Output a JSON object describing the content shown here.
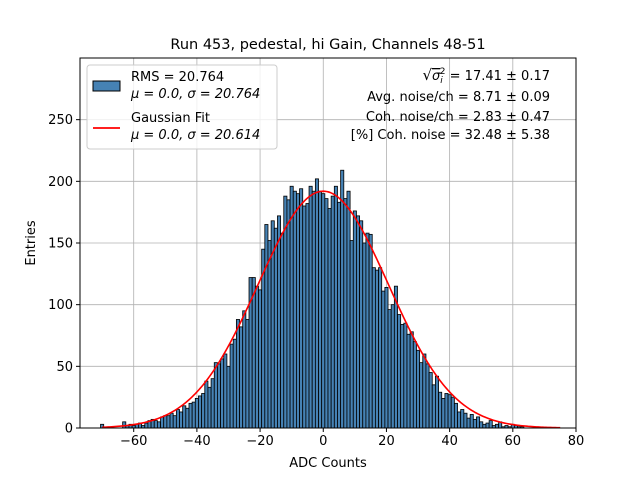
{
  "chart_data": {
    "type": "bar",
    "title": "Run 453, pedestal, hi Gain, Channels 48-51",
    "xlabel": "ADC Counts",
    "ylabel": "Entries",
    "xlim": [
      -77,
      80
    ],
    "ylim": [
      0,
      300
    ],
    "xticks": [
      -60,
      -40,
      -20,
      0,
      20,
      40,
      60,
      80
    ],
    "yticks": [
      0,
      50,
      100,
      150,
      200,
      250
    ],
    "xtick_labels": [
      "−60",
      "−40",
      "−20",
      "0",
      "20",
      "40",
      "60",
      "80"
    ],
    "ytick_labels": [
      "0",
      "50",
      "100",
      "150",
      "200",
      "250"
    ],
    "grid": true,
    "bin_width": 1,
    "bin_start": -70.5,
    "bar_color": "#4682b4",
    "bar_edge_color": "#000000",
    "histogram_values": [
      3,
      0,
      0,
      0,
      0,
      0,
      0,
      5,
      2,
      3,
      2,
      3,
      4,
      2,
      4,
      6,
      7,
      6,
      5,
      9,
      10,
      10,
      12,
      10,
      15,
      13,
      18,
      16,
      20,
      21,
      24,
      26,
      28,
      38,
      33,
      40,
      53,
      52,
      56,
      60,
      50,
      68,
      72,
      88,
      82,
      95,
      88,
      122,
      122,
      115,
      112,
      145,
      165,
      152,
      168,
      162,
      172,
      158,
      188,
      185,
      196,
      192,
      190,
      194,
      180,
      182,
      196,
      192,
      202,
      192,
      190,
      186,
      178,
      188,
      196,
      183,
      209,
      186,
      192,
      152,
      176,
      172,
      168,
      150,
      158,
      157,
      130,
      128,
      130,
      111,
      114,
      96,
      100,
      115,
      92,
      84,
      85,
      76,
      78,
      70,
      63,
      53,
      60,
      52,
      45,
      35,
      42,
      29,
      24,
      28,
      27,
      25,
      20,
      13,
      15,
      12,
      8,
      11,
      7,
      9,
      5,
      3,
      4,
      6,
      2,
      3,
      5,
      1,
      2,
      1,
      3,
      2,
      1,
      1
    ],
    "series": [
      {
        "name": "RMS = 20.764",
        "detail": "μ = 0.0, σ = 20.764",
        "kind": "histogram",
        "mean": 0.0,
        "sigma": 20.764
      },
      {
        "name": "Gaussian Fit",
        "detail": "μ = 0.0, σ = 20.614",
        "kind": "line",
        "mean": 0.0,
        "sigma": 20.614,
        "amplitude": 192,
        "x_range": [
          -70,
          75
        ],
        "color": "#ff0000"
      }
    ],
    "legend_position": "top-left",
    "annotations": {
      "sqrt_prefix": "√",
      "sigma_symbol": "σ",
      "sigma_sub": "i",
      "sigma_sup": "2",
      "line1_value": " = 17.41 ± 0.17",
      "line2": "Avg. noise/ch = 8.71 ± 0.09",
      "line3": "Coh. noise/ch = 2.83 ± 0.47",
      "line4": "[%] Coh. noise = 32.48 ± 5.38"
    }
  }
}
